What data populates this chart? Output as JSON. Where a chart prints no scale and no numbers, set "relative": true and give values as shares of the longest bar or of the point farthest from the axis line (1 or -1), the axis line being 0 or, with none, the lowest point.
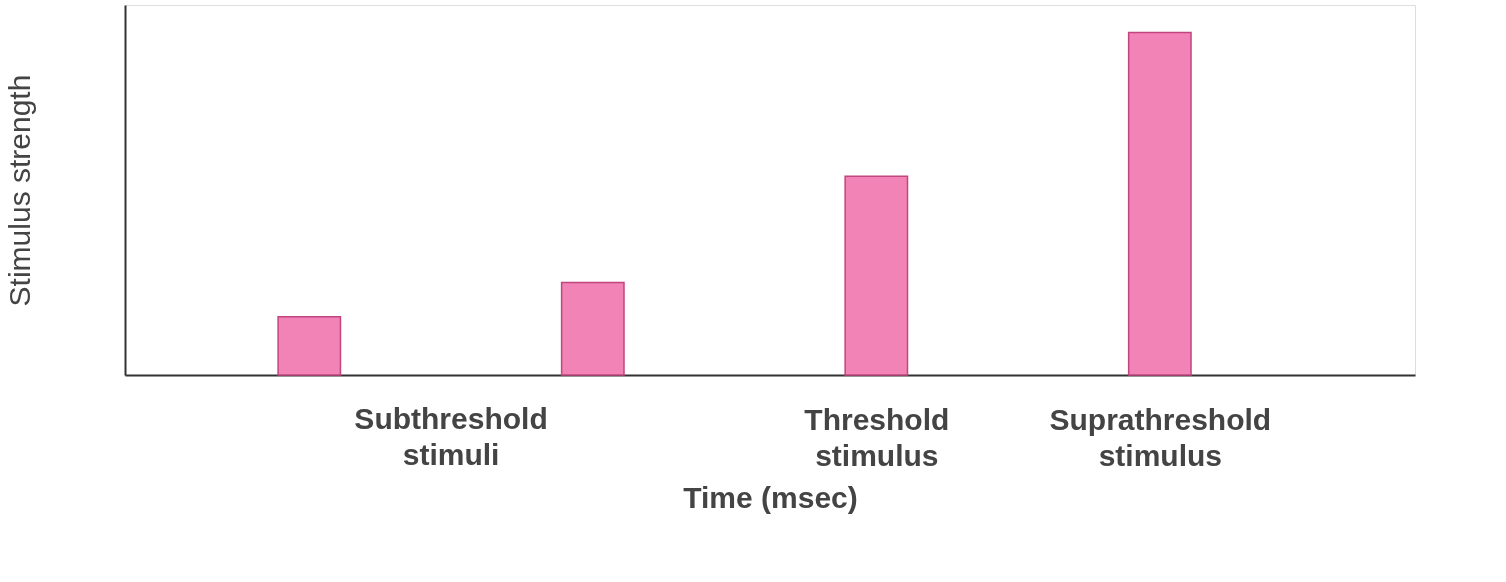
{
  "chart_data": {
    "type": "bar",
    "xlabel": "Time (msec)",
    "ylabel": "Stimulus strength",
    "categories": [
      null,
      null,
      "Threshold stimulus",
      "Suprathreshold stimulus"
    ],
    "values": [
      0.17,
      0.27,
      0.58,
      1.0
    ],
    "color": "#f283b6",
    "relative": true,
    "grid": false,
    "annotations": [
      "Subthreshold stimuli"
    ]
  }
}
